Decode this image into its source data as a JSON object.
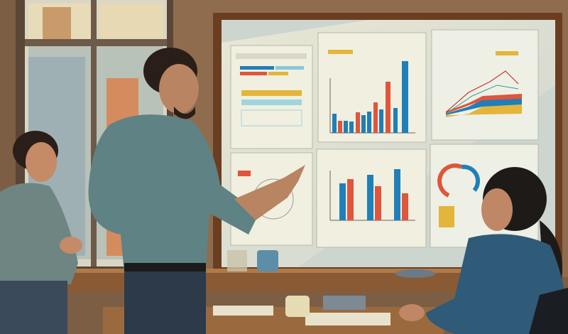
{
  "scene": {
    "description_tags": [
      "office",
      "presentation",
      "charts-board",
      "three-people"
    ],
    "colors": {
      "wall": "#8a6a4c",
      "board_frame": "#7a4a2a",
      "board": "#cfd6cf",
      "paper": "#eef0e4",
      "chart_blue": "#1f7fb8",
      "chart_red": "#e0553b",
      "chart_yellow": "#e3b53a",
      "shirt_man": "#5f8284",
      "shirt_woman_right": "#2f5a78",
      "desk": "#8a5a34"
    }
  }
}
